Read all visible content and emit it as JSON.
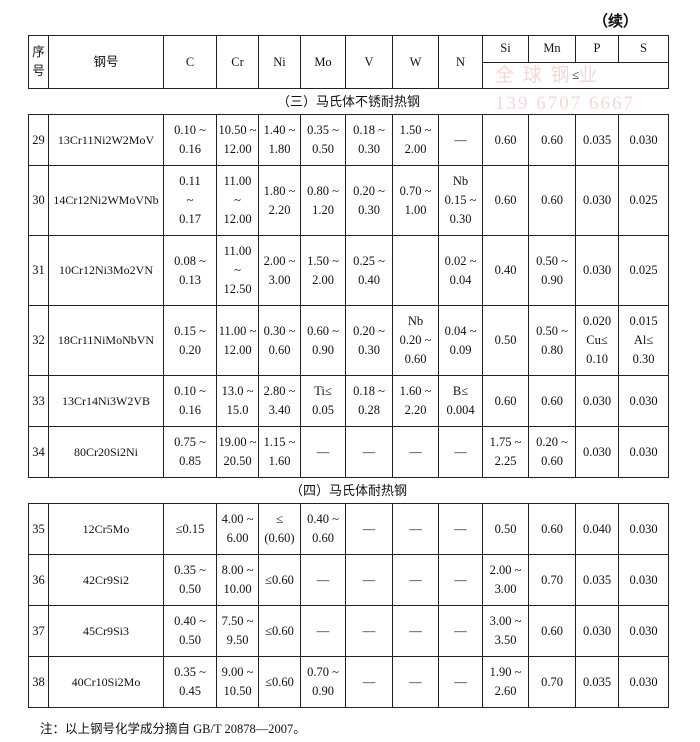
{
  "continued": "（续）",
  "watermark": [
    "全 球 钢 业",
    "139 6707 6667"
  ],
  "header": [
    "序\n号",
    "钢号",
    "C",
    "Cr",
    "Ni",
    "Mo",
    "V",
    "W",
    "N",
    "Si",
    "Mn",
    "P",
    "S"
  ],
  "le_label": "≤",
  "sections": [
    {
      "title": "（三）马氏体不锈耐热钢",
      "rows": [
        [
          "29",
          "13Cr11Ni2W2MoV",
          "0.10 ~\n0.16",
          "10.50 ~\n12.00",
          "1.40 ~\n1.80",
          "0.35 ~\n0.50",
          "0.18 ~\n0.30",
          "1.50 ~\n2.00",
          "—",
          "0.60",
          "0.60",
          "0.035",
          "0.030"
        ],
        [
          "30",
          "14Cr12Ni2WMoVNb",
          "0.11\n~\n0.17",
          "11.00\n~\n12.00",
          "1.80 ~\n2.20",
          "0.80 ~\n1.20",
          "0.20 ~\n0.30",
          "0.70 ~\n1.00",
          "Nb\n0.15 ~\n0.30",
          "0.60",
          "0.60",
          "0.030",
          "0.025"
        ],
        [
          "31",
          "10Cr12Ni3Mo2VN",
          "0.08 ~\n0.13",
          "11.00\n~\n12.50",
          "2.00 ~\n3.00",
          "1.50 ~\n2.00",
          "0.25 ~\n0.40",
          null,
          "0.02 ~\n0.04",
          "0.40",
          "0.50 ~\n0.90",
          "0.030",
          "0.025"
        ],
        [
          "32",
          "18Cr11NiMoNbVN",
          "0.15 ~\n0.20",
          "11.00 ~\n12.00",
          "0.30 ~\n0.60",
          "0.60 ~\n0.90",
          "0.20 ~\n0.30",
          "Nb\n0.20 ~\n0.60",
          "0.04 ~\n0.09",
          "0.50",
          "0.50 ~\n0.80",
          "0.020\nCu≤\n0.10",
          "0.015\nAl≤\n0.30"
        ],
        [
          "33",
          "13Cr14Ni3W2VB",
          "0.10 ~\n0.16",
          "13.0 ~\n15.0",
          "2.80 ~\n3.40",
          "Ti≤\n0.05",
          "0.18 ~\n0.28",
          "1.60 ~\n2.20",
          "B≤\n0.004",
          "0.60",
          "0.60",
          "0.030",
          "0.030"
        ],
        [
          "34",
          "80Cr20Si2Ni",
          "0.75 ~\n0.85",
          "19.00 ~\n20.50",
          "1.15 ~\n1.60",
          "—",
          "—",
          "—",
          "—",
          "1.75 ~\n2.25",
          "0.20 ~\n0.60",
          "0.030",
          "0.030"
        ]
      ]
    },
    {
      "title": "（四）马氏体耐热钢",
      "rows": [
        [
          "35",
          "12Cr5Mo",
          "≤0.15",
          "4.00 ~\n6.00",
          "≤\n(0.60)",
          "0.40 ~\n0.60",
          "—",
          "—",
          "—",
          "0.50",
          "0.60",
          "0.040",
          "0.030"
        ],
        [
          "36",
          "42Cr9Si2",
          "0.35 ~\n0.50",
          "8.00 ~\n10.00",
          "≤0.60",
          "—",
          "—",
          "—",
          "—",
          "2.00 ~\n3.00",
          "0.70",
          "0.035",
          "0.030"
        ],
        [
          "37",
          "45Cr9Si3",
          "0.40 ~\n0.50",
          "7.50 ~\n9.50",
          "≤0.60",
          "—",
          "—",
          "—",
          "—",
          "3.00 ~\n3.50",
          "0.60",
          "0.030",
          "0.030"
        ],
        [
          "38",
          "40Cr10Si2Mo",
          "0.35 ~\n0.45",
          "9.00 ~\n10.50",
          "≤0.60",
          "0.70 ~\n0.90",
          "—",
          "—",
          "—",
          "1.90 ~\n2.60",
          "0.70",
          "0.035",
          "0.030"
        ]
      ]
    }
  ],
  "note": "注：以上钢号化学成分摘自 GB/T 20878—2007。"
}
